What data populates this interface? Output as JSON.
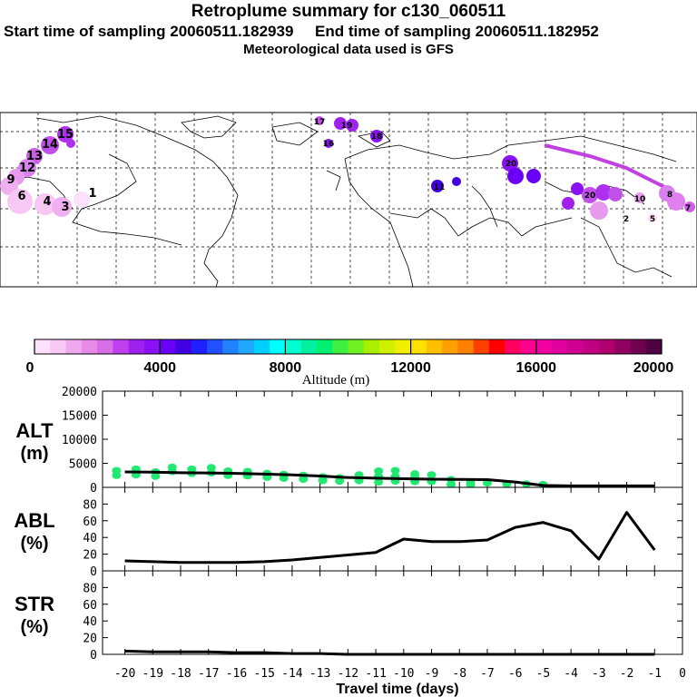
{
  "header": {
    "title": "Retroplume summary for c130_060511",
    "start_label": "Start time of sampling 20060511.182939",
    "end_label": "End time of sampling 20060511.182952",
    "met_label": "Meteorological data used is GFS"
  },
  "colorbar": {
    "label": "Altitude (m)",
    "ticks": [
      "0",
      "4000",
      "8000",
      "12000",
      "16000",
      "20000"
    ],
    "colors": [
      "#fde0fb",
      "#f8c8f5",
      "#f0a8ef",
      "#e88ae8",
      "#d86ee8",
      "#c040f0",
      "#a020f0",
      "#8a10f5",
      "#6a00f8",
      "#4000e0",
      "#2020ff",
      "#2050ff",
      "#2080ff",
      "#20a8ff",
      "#00d0ff",
      "#00ffff",
      "#00ffd0",
      "#00f0a0",
      "#00f070",
      "#40f040",
      "#70f020",
      "#a8f000",
      "#d0f000",
      "#f0f000",
      "#ffe000",
      "#ffc000",
      "#ffa000",
      "#ff8000",
      "#ff4000",
      "#ff0000",
      "#ff0060",
      "#ff0090",
      "#f000a0",
      "#e000a0",
      "#d00090",
      "#c00080",
      "#b00070",
      "#900060",
      "#700050",
      "#500040"
    ]
  },
  "map": {
    "labels": [
      "15",
      "14",
      "13",
      "12",
      "9",
      "6",
      "4",
      "3",
      "1",
      "19",
      "17",
      "16",
      "18",
      "11",
      "20",
      "20",
      "10",
      "8",
      "7",
      "5",
      "2"
    ]
  },
  "chart_data": [
    {
      "type": "line",
      "panel": "ALT",
      "ylabel_1": "ALT",
      "ylabel_2": "(m)",
      "ylim": [
        0,
        20000
      ],
      "yticks": [
        "0",
        "5000",
        "10000",
        "15000",
        "20000"
      ],
      "x": [
        -20,
        -19,
        -18,
        -17,
        -16,
        -15,
        -14,
        -13,
        -12,
        -11,
        -10,
        -9,
        -8,
        -7,
        -6,
        -5,
        -4,
        -3,
        -2,
        -1
      ],
      "values": [
        3200,
        3150,
        3050,
        3000,
        2900,
        2750,
        2600,
        2350,
        2050,
        1900,
        1800,
        1700,
        1650,
        1600,
        1100,
        400,
        300,
        300,
        300,
        300
      ],
      "scatter_points": [
        [
          -20.3,
          3500
        ],
        [
          -20.3,
          2500
        ],
        [
          -19.6,
          3800
        ],
        [
          -19.6,
          2600
        ],
        [
          -18.9,
          3200
        ],
        [
          -18.9,
          2300
        ],
        [
          -18.3,
          4200
        ],
        [
          -18.3,
          3300
        ],
        [
          -17.6,
          3800
        ],
        [
          -17.6,
          2900
        ],
        [
          -16.9,
          4100
        ],
        [
          -16.9,
          3000
        ],
        [
          -16.3,
          3400
        ],
        [
          -16.3,
          2500
        ],
        [
          -15.6,
          3300
        ],
        [
          -15.6,
          2400
        ],
        [
          -14.9,
          2900
        ],
        [
          -14.9,
          2100
        ],
        [
          -14.3,
          2700
        ],
        [
          -14.3,
          1900
        ],
        [
          -13.6,
          2500
        ],
        [
          -13.6,
          1700
        ],
        [
          -12.9,
          2200
        ],
        [
          -12.9,
          1400
        ],
        [
          -12.3,
          2000
        ],
        [
          -12.3,
          1300
        ],
        [
          -11.6,
          2600
        ],
        [
          -11.6,
          1400
        ],
        [
          -10.9,
          3400
        ],
        [
          -10.9,
          2300
        ],
        [
          -10.9,
          1100
        ],
        [
          -10.3,
          3500
        ],
        [
          -10.3,
          2300
        ],
        [
          -10.3,
          1300
        ],
        [
          -9.6,
          2800
        ],
        [
          -9.6,
          2100
        ],
        [
          -9.6,
          1200
        ],
        [
          -9.0,
          2600
        ],
        [
          -9.0,
          1200
        ],
        [
          -8.3,
          1600
        ],
        [
          -8.3,
          600
        ],
        [
          -7.6,
          1000
        ],
        [
          -7.6,
          500
        ],
        [
          -7.0,
          900
        ],
        [
          -6.3,
          700
        ],
        [
          -5.6,
          700
        ],
        [
          -5.0,
          600
        ]
      ]
    },
    {
      "type": "line",
      "panel": "ABL",
      "ylabel_1": "ABL",
      "ylabel_2": "(%)",
      "ylim": [
        0,
        100
      ],
      "yticks": [
        "0",
        "20",
        "40",
        "60",
        "80"
      ],
      "x": [
        -20,
        -19,
        -18,
        -17,
        -16,
        -15,
        -14,
        -13,
        -12,
        -11,
        -10,
        -9,
        -8,
        -7,
        -6,
        -5,
        -4,
        -3,
        -2,
        -1
      ],
      "values": [
        12,
        11,
        10,
        10,
        10,
        11,
        13,
        16,
        19,
        22,
        38,
        35,
        35,
        37,
        52,
        58,
        48,
        14,
        70,
        25
      ]
    },
    {
      "type": "line",
      "panel": "STR",
      "ylabel_1": "STR",
      "ylabel_2": "(%)",
      "ylim": [
        0,
        100
      ],
      "yticks": [
        "0",
        "20",
        "40",
        "60",
        "80"
      ],
      "x": [
        -20,
        -19,
        -18,
        -17,
        -16,
        -15,
        -14,
        -13,
        -12,
        -11,
        -10,
        -9,
        -8,
        -7,
        -6,
        -5,
        -4,
        -3,
        -2,
        -1
      ],
      "values": [
        4,
        3,
        3,
        3,
        2,
        2,
        1,
        1,
        0,
        0,
        0,
        0,
        0,
        0,
        0,
        0,
        0,
        0,
        0,
        0
      ]
    }
  ],
  "xaxis": {
    "label": "Travel time (days)",
    "ticks": [
      "-20",
      "-19",
      "-18",
      "-17",
      "-16",
      "-15",
      "-14",
      "-13",
      "-12",
      "-11",
      "-10",
      "-9",
      "-8",
      "-7",
      "-6",
      "-5",
      "-4",
      "-3",
      "-2",
      "-1",
      "0"
    ]
  }
}
